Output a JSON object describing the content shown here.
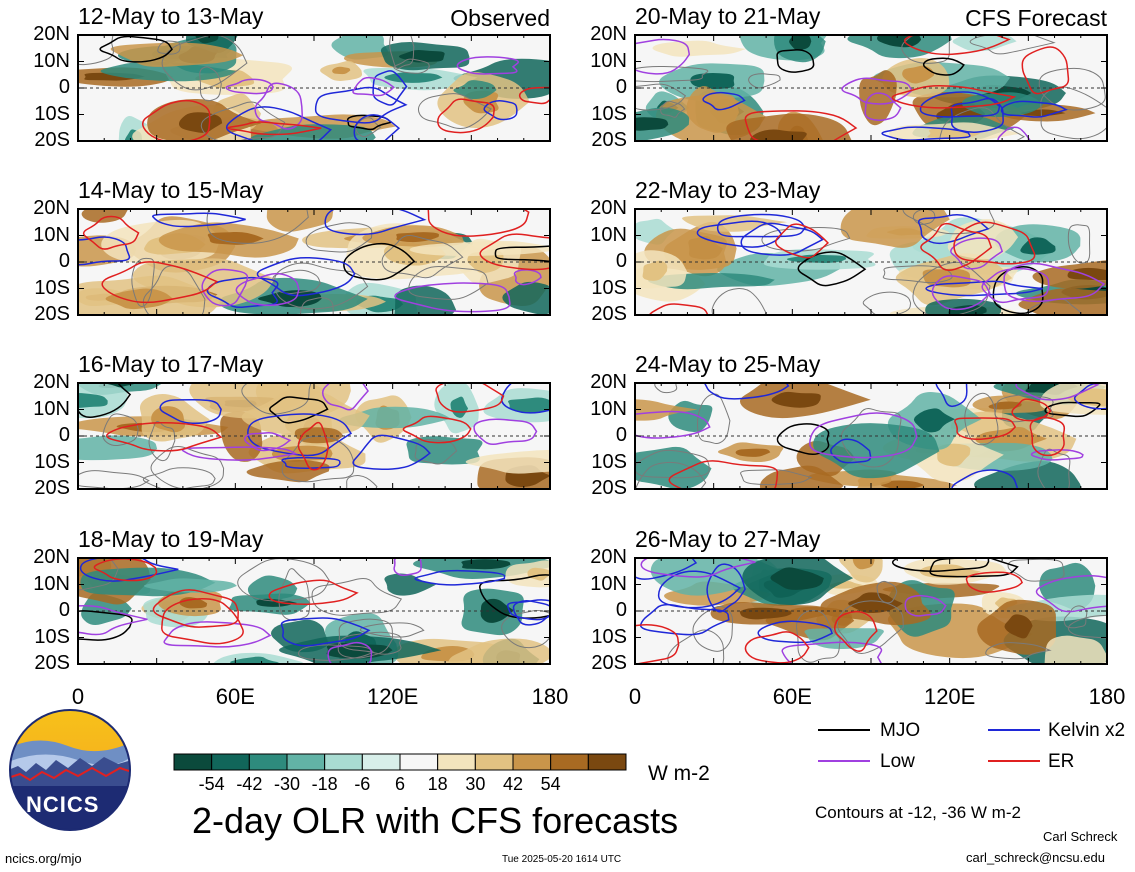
{
  "panels": {
    "left": [
      {
        "title": "12-May to 13-May",
        "label": "Observed"
      },
      {
        "title": "14-May to 15-May",
        "label": ""
      },
      {
        "title": "16-May to 17-May",
        "label": ""
      },
      {
        "title": "18-May to 19-May",
        "label": ""
      }
    ],
    "right": [
      {
        "title": "20-May to 21-May",
        "label": "CFS Forecast"
      },
      {
        "title": "22-May to 23-May",
        "label": ""
      },
      {
        "title": "24-May to 25-May",
        "label": ""
      },
      {
        "title": "26-May to 27-May",
        "label": ""
      }
    ]
  },
  "axes": {
    "y_ticks": [
      "20N",
      "10N",
      "0",
      "10S",
      "20S"
    ],
    "x_ticks": [
      "0",
      "60E",
      "120E",
      "180"
    ]
  },
  "colorbar": {
    "labels": [
      "-54",
      "-42",
      "-30",
      "-18",
      "-6",
      "6",
      "18",
      "30",
      "42",
      "54"
    ],
    "colors": [
      "#0b4a3c",
      "#11665a",
      "#2e8b7d",
      "#62b3a6",
      "#a9dcd2",
      "#d8efea",
      "#f6f6f6",
      "#f3e4bd",
      "#e2c282",
      "#c9954a",
      "#a86a22",
      "#7a4810"
    ],
    "units": "W m-2"
  },
  "legend": {
    "items": [
      {
        "label": "MJO",
        "color": "#000000"
      },
      {
        "label": "Kelvin x2",
        "color": "#1f28d8"
      },
      {
        "label": "Low",
        "color": "#a040e0"
      },
      {
        "label": "ER",
        "color": "#e02020"
      }
    ],
    "contours": "Contours at -12, -36 W m-2"
  },
  "footer": {
    "main_title": "2-day OLR with CFS forecasts",
    "logo_text": "NCICS",
    "site": "ncics.org/mjo",
    "timestamp": "Tue 2025-05-20 1614 UTC",
    "author": "Carl Schreck",
    "email": "carl_schreck@ncsu.edu"
  }
}
